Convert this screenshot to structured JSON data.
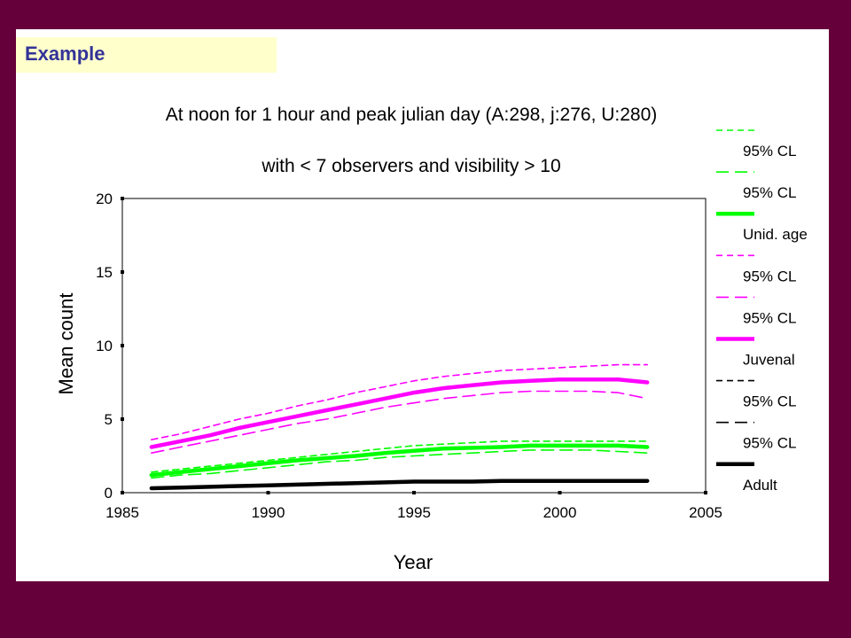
{
  "slide_label": "Example",
  "chart_data": {
    "type": "line",
    "title_line1": "At noon for 1 hour and peak julian day (A:298, j:276, U:280)",
    "title_line2": "with < 7 observers and visibility > 10",
    "xlabel": "Year",
    "ylabel": "Mean count",
    "xlim": [
      1985,
      2005
    ],
    "ylim": [
      0,
      20
    ],
    "xticks": [
      "1985",
      "1990",
      "1995",
      "2000",
      "2005"
    ],
    "yticks": [
      "0",
      "5",
      "10",
      "15",
      "20"
    ],
    "x": [
      1986,
      1987,
      1988,
      1989,
      1990,
      1991,
      1992,
      1993,
      1994,
      1995,
      1996,
      1997,
      1998,
      1999,
      2000,
      2001,
      2002,
      2003
    ],
    "series": [
      {
        "name": "95% CL",
        "color": "#00ff00",
        "style": "dash-short",
        "values": [
          1.4,
          1.6,
          1.8,
          2.0,
          2.2,
          2.4,
          2.6,
          2.8,
          3.0,
          3.2,
          3.3,
          3.4,
          3.5,
          3.5,
          3.5,
          3.5,
          3.5,
          3.5
        ]
      },
      {
        "name": "95% CL",
        "color": "#00ff00",
        "style": "dash-long",
        "values": [
          1.0,
          1.2,
          1.3,
          1.5,
          1.7,
          1.9,
          2.1,
          2.2,
          2.4,
          2.5,
          2.6,
          2.7,
          2.8,
          2.9,
          2.9,
          2.9,
          2.8,
          2.7
        ]
      },
      {
        "name": "Unid. age",
        "color": "#00ff00",
        "style": "thick",
        "values": [
          1.2,
          1.4,
          1.6,
          1.8,
          2.0,
          2.2,
          2.35,
          2.5,
          2.7,
          2.85,
          3.0,
          3.05,
          3.1,
          3.2,
          3.2,
          3.2,
          3.2,
          3.1
        ]
      },
      {
        "name": "95% CL",
        "color": "#ff00ff",
        "style": "dash-short",
        "values": [
          3.6,
          4.0,
          4.5,
          5.0,
          5.4,
          5.9,
          6.3,
          6.8,
          7.2,
          7.6,
          7.9,
          8.1,
          8.3,
          8.4,
          8.5,
          8.6,
          8.7,
          8.7
        ]
      },
      {
        "name": "95% CL",
        "color": "#ff00ff",
        "style": "dash-long",
        "values": [
          2.7,
          3.1,
          3.5,
          3.9,
          4.3,
          4.7,
          5.0,
          5.4,
          5.8,
          6.1,
          6.4,
          6.6,
          6.8,
          6.9,
          6.9,
          6.9,
          6.8,
          6.4
        ]
      },
      {
        "name": "Juvenal",
        "color": "#ff00ff",
        "style": "thick",
        "values": [
          3.1,
          3.5,
          3.9,
          4.4,
          4.8,
          5.2,
          5.6,
          6.0,
          6.4,
          6.8,
          7.1,
          7.3,
          7.5,
          7.6,
          7.7,
          7.7,
          7.7,
          7.5
        ]
      },
      {
        "name": "95% CL",
        "color": "#000000",
        "style": "dash-short",
        "values": [
          0.35,
          0.4,
          0.45,
          0.5,
          0.55,
          0.6,
          0.65,
          0.7,
          0.75,
          0.8,
          0.8,
          0.8,
          0.85,
          0.85,
          0.85,
          0.85,
          0.85,
          0.85
        ]
      },
      {
        "name": "95% CL",
        "color": "#000000",
        "style": "dash-long",
        "values": [
          0.25,
          0.3,
          0.35,
          0.4,
          0.45,
          0.5,
          0.55,
          0.6,
          0.65,
          0.7,
          0.7,
          0.7,
          0.75,
          0.75,
          0.75,
          0.75,
          0.75,
          0.75
        ]
      },
      {
        "name": "Adult",
        "color": "#000000",
        "style": "thick",
        "values": [
          0.3,
          0.35,
          0.4,
          0.45,
          0.5,
          0.55,
          0.6,
          0.65,
          0.7,
          0.75,
          0.75,
          0.75,
          0.8,
          0.8,
          0.8,
          0.8,
          0.8,
          0.8
        ]
      }
    ],
    "legend_position": "right",
    "grid": false
  }
}
